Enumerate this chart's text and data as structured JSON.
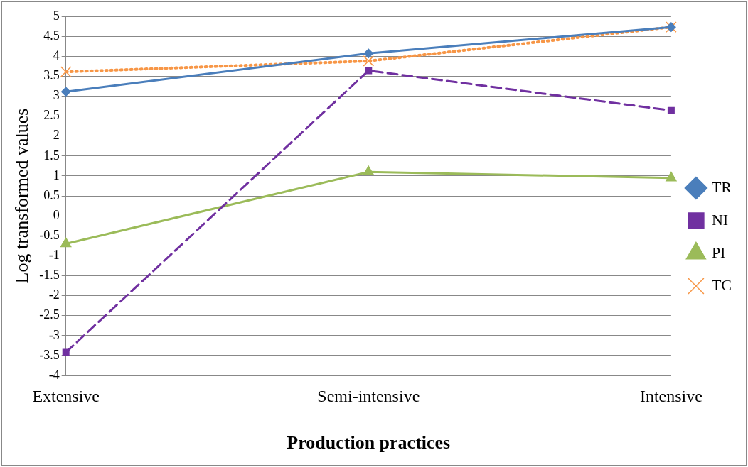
{
  "chart_data": {
    "type": "line",
    "xlabel": "Production practices",
    "ylabel": "Log transformed values",
    "categories": [
      "Extensive",
      "Semi-intensive",
      "Intensive"
    ],
    "series": [
      {
        "name": "TR",
        "color": "#4a7ebb",
        "values": [
          3.11,
          4.07,
          4.73
        ],
        "marker": "diamond",
        "line_style": "solid"
      },
      {
        "name": "NI",
        "color": "#7030a0",
        "values": [
          -3.42,
          3.64,
          2.64
        ],
        "marker": "square",
        "line_style": "dashed"
      },
      {
        "name": "PI",
        "color": "#9bbb59",
        "values": [
          -0.7,
          1.1,
          0.95
        ],
        "marker": "triangle",
        "line_style": "solid"
      },
      {
        "name": "TC",
        "color": "#f79646",
        "values": [
          3.61,
          3.88,
          4.73
        ],
        "marker": "cross",
        "line_style": "dotted"
      }
    ],
    "ylim": [
      -4,
      5
    ],
    "yticks": [
      -4,
      -3.5,
      -3,
      -2.5,
      -2,
      -1.5,
      -1,
      -0.5,
      0,
      0.5,
      1,
      1.5,
      2,
      2.5,
      3,
      3.5,
      4,
      4.5,
      5
    ],
    "grid": "y",
    "legend": "right"
  }
}
